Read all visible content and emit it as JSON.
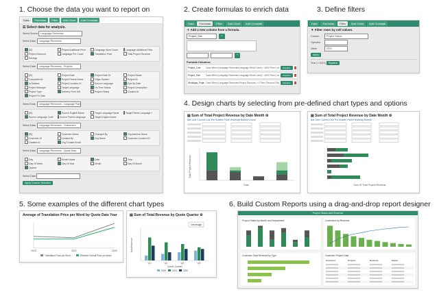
{
  "headings": {
    "h1": "1. Choose the data you want to report on",
    "h2": "2. Create formulas to enrich data",
    "h3": "3. Define filters",
    "h4": "4. Design charts by selecting from pre-defined chart types and options",
    "h5": "5. Some examples of the different chart types",
    "h6": "6. Build Custom Reports using a drag-and-drop report designer"
  },
  "toolbar": {
    "data": "Data",
    "formulas": "Formulas",
    "filter": "Filter",
    "add_chart": "Add Chart",
    "add_crosstab": "Add Crosstab"
  },
  "panel1": {
    "title": "Select data for analysis.",
    "select_source": "Select Source",
    "source_value": "Language Revenues",
    "select_data": "Select Data",
    "blocks": [
      {
        "value": "Language Revenues",
        "items": [
          "[ID]",
          "Project Additional Price",
          "Language Word Count",
          "Language Additional Price",
          "Project Discount",
          "Language Pre Count",
          "Translation Price",
          "Total Project Revenue",
          "Savings"
        ]
      },
      {
        "value": "Language Revenues - Projects",
        "items": [
          "[ID]",
          "Project Date",
          "Project Date Dt",
          "Project Name",
          "Completed At",
          "Project Parent Name",
          "Origin System",
          "Project ID",
          "Is Deleted",
          "Project Location ID",
          "Source Language",
          "Due By Date",
          "Project Manager",
          "Target Language",
          "On Time Status",
          "Project Description",
          "Project Type",
          "Delivery Price Diff",
          "Project Status",
          "Created At",
          "Project Fix Date"
        ]
      },
      {
        "value": "Language Revenues - Language Pairs",
        "items": [
          "[ID]",
          "Source English Name",
          "Target Language Name",
          "Target Parent Language Code",
          "Source Language Code",
          "Source Parent Language Code",
          "Target English Name"
        ]
      },
      {
        "value": "Language Revenues - Customers",
        "items": [
          "[ID]",
          "Customer Name",
          "Changed By",
          "Org Address Name",
          "Customer ID",
          "Created By",
          "Org Name",
          "Customer Location ID",
          "Created At",
          "Org Contact Email"
        ]
      },
      {
        "value": "Language Revenues - Quote Date",
        "items": [
          "Day",
          "Month Name",
          "Date",
          "Year",
          "Day Of Week",
          "Day Of Year",
          "Month",
          "Day Of Month",
          "Quarter"
        ]
      }
    ],
    "apply_button": "Apply Column Selection"
  },
  "panel2": {
    "title": "Add a new column from a formula.",
    "name_value": "Project_Size",
    "formula_heading": "Formula Columns:",
    "rows": [
      {
        "name": "Project_Cost",
        "formula": "Case When (Language Revenues.Language Word Count) > 4000 Then 'Large' Else 'Small' End"
      },
      {
        "name": "Project_Size",
        "formula": "Case When (Language Revenues.Language Word Count) > 4000 Then 'Large' Else 'Small' End"
      },
      {
        "name": "Workdays_Project",
        "formula": "Case When (Language Revenues.Project Discount) > 0 Then 'Discount' Else 'No Discount' End"
      }
    ],
    "replace": "Replace",
    "delete": "x"
  },
  "panel3": {
    "title": "Filter rows by cell values.",
    "label_column": "Column",
    "column_value": "Project Status",
    "label_operator": "Operator",
    "label_value": "Value",
    "value_value": "2021",
    "apply": "Apply",
    "summary": "Year (= 2021)",
    "replace": "Replace"
  },
  "panel4a": {
    "title": "Sum of Total Project Revenue by Date Month",
    "tabs": "Bar   Line   Curved Line   Pie   Scatter   Pivot   Heatmap   Bubble   Donut",
    "xlabel": "Date",
    "ylabel": "Total Project Revenue",
    "legend": [
      "Invoiced",
      "Invoiced - Paid",
      "Not Sent Over"
    ]
  },
  "panel4b": {
    "title": "Sum of Total Project Revenue by Date Month",
    "tabs": "Bar   Line   Curved Line   Pie   Scatter   Pivot   Heatmap   Bubble",
    "xlabel": "Sum Of Total Project Revenue",
    "legend": [
      "Invoiced",
      "Invoiced - Paid",
      "Not Sent Over"
    ]
  },
  "panel5a": {
    "title": "Average of Translation Price per Word by Quote Date Year",
    "xticks": [
      "2020",
      "2021",
      "2022"
    ],
    "legend": [
      "Translation Price per Word",
      "Effective Overall Price per Word"
    ]
  },
  "panel5b": {
    "title": "Sum of Total Revenue by Quote Quarter",
    "tooltip": "Get Image",
    "ylabel": "Total Revenue",
    "xlabel": "Quote Quarter",
    "categories": [
      "Q1",
      "Q2",
      "Q3",
      "Q4"
    ],
    "legend": [
      "2020",
      "2021",
      "2022"
    ]
  },
  "panel6": {
    "header": "Project Status and Revenue",
    "chart1_title": "Project Status by Month and Department",
    "chart2_title": "Customers by Revenue",
    "chart3_title": "Customer Total Revenue by Type",
    "chart4_title": "Customer Project Data",
    "table_headers": [
      "Customer",
      "Projects",
      "Revenue",
      "Status"
    ]
  }
}
